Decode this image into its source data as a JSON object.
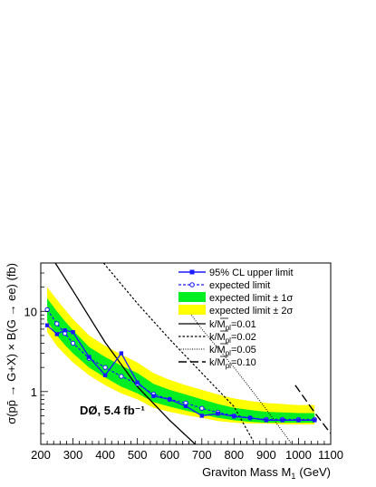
{
  "chart_data": {
    "type": "line",
    "xlabel": "Graviton Mass M",
    "xlabel_sub": "1",
    "xlabel_unit": "(GeV)",
    "ylabel": "σ(pp̄ → G+X) × B(G → ee) (fb)",
    "experiment_label": "DØ, 5.4 fb⁻¹",
    "xlim": [
      200,
      1100
    ],
    "ylim": [
      0.22,
      40
    ],
    "yscale": "log",
    "x_ticks": [
      200,
      300,
      400,
      500,
      600,
      700,
      800,
      900,
      1000,
      1100
    ],
    "x_tick_labels": [
      "200",
      "300",
      "400",
      "500",
      "600",
      "700",
      "800",
      "900",
      "1000",
      "1100"
    ],
    "y_ticks": [
      1,
      10
    ],
    "y_tick_labels": [
      "1",
      "10"
    ],
    "legend_position": "top-right",
    "colors": {
      "observed": "#1a1aff",
      "band1": "#00ee22",
      "band2": "#ffff00"
    },
    "series": [
      {
        "name": "95% CL upper limit",
        "style": "solid-square-markers",
        "x": [
          220,
          250,
          275,
          300,
          350,
          400,
          450,
          500,
          550,
          600,
          650,
          700,
          750,
          800,
          850,
          900,
          950,
          1000,
          1050
        ],
        "y": [
          6.7,
          5.2,
          5.8,
          5.5,
          2.7,
          1.6,
          3.0,
          1.3,
          0.88,
          0.8,
          0.66,
          0.5,
          0.53,
          0.49,
          0.47,
          0.44,
          0.44,
          0.44,
          0.44
        ]
      },
      {
        "name": "expected limit",
        "style": "dashed-open-circle-markers",
        "x": [
          220,
          250,
          275,
          300,
          350,
          400,
          450,
          500,
          550,
          600,
          650,
          700,
          750,
          800,
          850,
          900,
          950,
          1000,
          1050
        ],
        "y": [
          10.5,
          7.0,
          5.3,
          4.0,
          2.6,
          2.0,
          1.55,
          1.25,
          0.93,
          0.8,
          0.72,
          0.62,
          0.55,
          0.5,
          0.47,
          0.45,
          0.45,
          0.45,
          0.45
        ]
      },
      {
        "name": "expected limit ± 1σ",
        "style": "band",
        "x": [
          220,
          250,
          275,
          300,
          350,
          400,
          450,
          500,
          550,
          600,
          650,
          700,
          750,
          800,
          850,
          900,
          950,
          1000,
          1050
        ],
        "low": [
          7.5,
          5.0,
          3.8,
          3.0,
          2.0,
          1.5,
          1.15,
          0.95,
          0.74,
          0.65,
          0.58,
          0.52,
          0.47,
          0.44,
          0.42,
          0.41,
          0.41,
          0.41,
          0.41
        ],
        "high": [
          14.5,
          10.0,
          7.5,
          5.8,
          3.6,
          2.7,
          2.1,
          1.7,
          1.25,
          1.05,
          0.92,
          0.8,
          0.7,
          0.63,
          0.59,
          0.56,
          0.55,
          0.54,
          0.54
        ]
      },
      {
        "name": "expected limit ± 2σ",
        "style": "band",
        "x": [
          220,
          250,
          275,
          300,
          350,
          400,
          450,
          500,
          550,
          600,
          650,
          700,
          750,
          800,
          850,
          900,
          950,
          1000,
          1050
        ],
        "low": [
          5.5,
          3.7,
          2.9,
          2.3,
          1.6,
          1.2,
          0.95,
          0.8,
          0.63,
          0.56,
          0.51,
          0.47,
          0.43,
          0.41,
          0.4,
          0.4,
          0.39,
          0.39,
          0.39
        ],
        "high": [
          20.0,
          14.0,
          10.5,
          8.0,
          5.0,
          3.7,
          2.9,
          2.3,
          1.7,
          1.4,
          1.2,
          1.05,
          0.92,
          0.82,
          0.76,
          0.72,
          0.7,
          0.68,
          0.68
        ]
      },
      {
        "name": "k/M̄ₚₗ=0.01",
        "style": "solid",
        "x": [
          245,
          300,
          400,
          500,
          600,
          700
        ],
        "y": [
          40,
          18,
          4.1,
          1.15,
          0.44,
          0.185
        ]
      },
      {
        "name": "k/M̄ₚₗ=0.02",
        "style": "short-dash",
        "x": [
          395,
          500,
          600,
          700,
          800,
          860
        ],
        "y": [
          40,
          12.5,
          4.5,
          1.7,
          0.65,
          0.24
        ]
      },
      {
        "name": "k/M̄ₚₗ=0.05",
        "style": "dotted",
        "x": [
          655,
          700,
          800,
          900,
          980
        ],
        "y": [
          10.5,
          6.0,
          2.0,
          0.6,
          0.22
        ]
      },
      {
        "name": "k/M̄ₚₗ=0.10",
        "style": "long-dash",
        "x": [
          990,
          1050,
          1100
        ],
        "y": [
          1.2,
          0.55,
          0.3
        ]
      }
    ],
    "legend_labels": {
      "observed": "95% CL upper limit",
      "expected": "expected limit",
      "band1": "expected limit ± 1σ",
      "band2": "expected limit ± 2σ",
      "k001_prefix": "k/M",
      "k001_value": "=0.01",
      "k002_value": "=0.02",
      "k005_value": "=0.05",
      "k010_value": "=0.10",
      "pl_sub": "pl"
    }
  }
}
